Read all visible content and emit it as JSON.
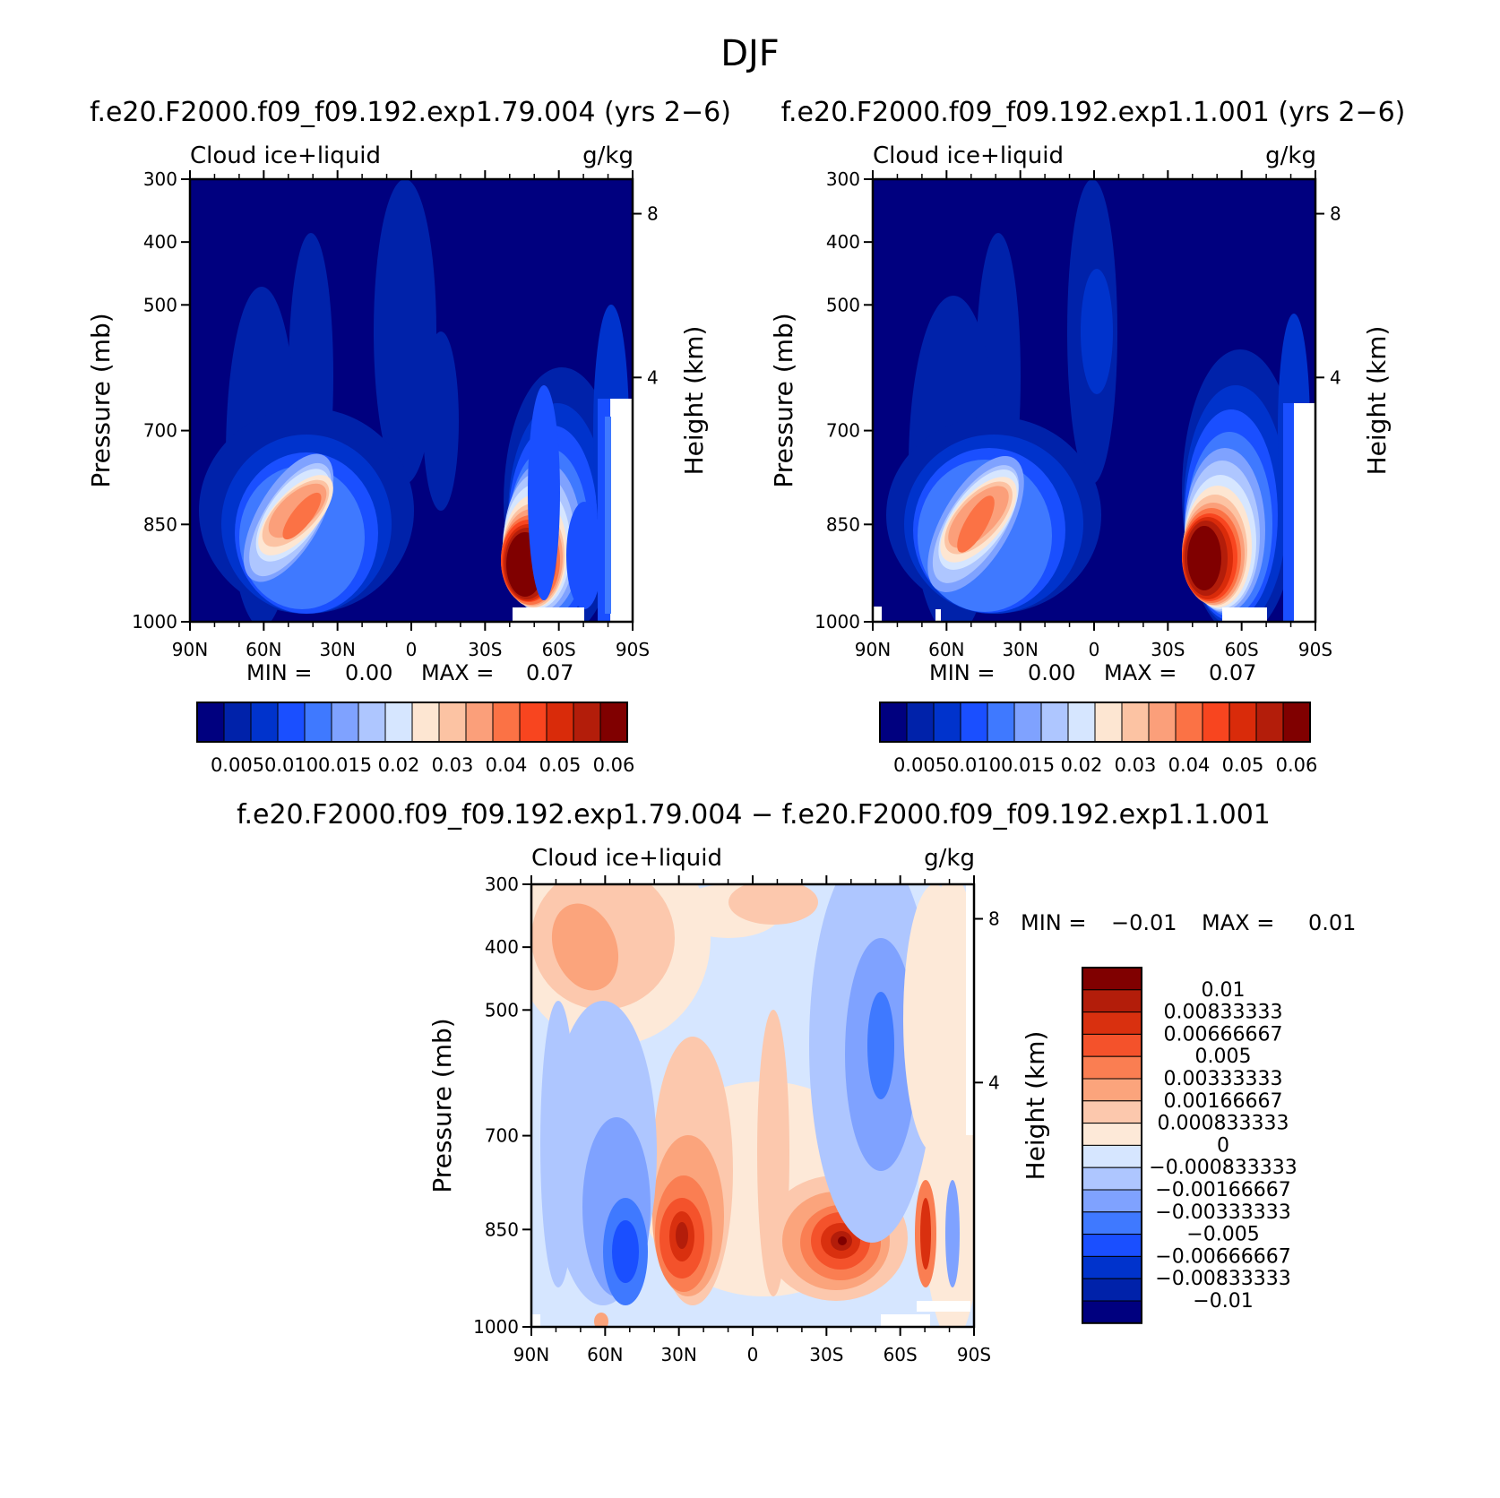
{
  "figure": {
    "title": "DJF",
    "colors": {
      "blues": [
        "#00007f",
        "#0022aa",
        "#0033cc",
        "#1a4fff",
        "#3f79ff",
        "#7fa2ff",
        "#aec6ff",
        "#d6e6ff"
      ],
      "reds": [
        "#fde6d2",
        "#fcc3a3",
        "#fb9f7a",
        "#fb7245",
        "#f8451f",
        "#d92b0a",
        "#b31d0a",
        "#800000"
      ],
      "diff_neg": [
        "#00007f",
        "#0022aa",
        "#0033cc",
        "#1a4fff",
        "#3f79ff",
        "#7fa2ff",
        "#aec6ff",
        "#d6e6ff"
      ],
      "diff_pos": [
        "#fde9d8",
        "#fcc8ad",
        "#fba47c",
        "#fa7e52",
        "#f4522b",
        "#d9300f",
        "#b31d0a",
        "#800000"
      ]
    }
  },
  "panels": [
    {
      "title": "f.e20.F2000.f09_f09.192.exp1.79.004 (yrs 2−6)",
      "left_label": "Cloud  ice+liquid",
      "right_label": "g/kg",
      "y_title": "Pressure (mb)",
      "y2_title": "Height (km)",
      "stats": {
        "min_label": "MIN =",
        "min_value": "0.00",
        "max_label": "MAX =",
        "max_value": "0.07"
      }
    },
    {
      "title": "f.e20.F2000.f09_f09.192.exp1.1.001 (yrs 2−6)",
      "left_label": "Cloud  ice+liquid",
      "right_label": "g/kg",
      "y_title": "Pressure (mb)",
      "y2_title": "Height (km)",
      "stats": {
        "min_label": "MIN =",
        "min_value": "0.00",
        "max_label": "MAX =",
        "max_value": "0.07"
      }
    },
    {
      "title": "f.e20.F2000.f09_f09.192.exp1.79.004 − f.e20.F2000.f09_f09.192.exp1.1.001",
      "left_label": "Cloud  ice+liquid",
      "right_label": "g/kg",
      "y_title": "Pressure (mb)",
      "y2_title": "Height (km)",
      "stats": {
        "min_label": "MIN =",
        "min_value": "−0.01",
        "max_label": "MAX =",
        "max_value": "0.01"
      }
    }
  ],
  "chart_data": [
    {
      "type": "heatmap",
      "title": "f.e20.F2000.f09_f09.192.exp1.79.004 (yrs 2−6)",
      "variable": "Cloud  ice+liquid",
      "units": "g/kg",
      "x_ticks": [
        "90N",
        "60N",
        "30N",
        "0",
        "30S",
        "60S",
        "90S"
      ],
      "y_ticks": [
        "300",
        "400",
        "500",
        "700",
        "850",
        "1000"
      ],
      "y2_ticks": [
        "8",
        "4"
      ],
      "colorbar_labels": [
        "0.005",
        "0.010",
        "0.015",
        "0.02",
        "0.03",
        "0.04",
        "0.05",
        "0.06"
      ],
      "min": 0.0,
      "max": 0.07,
      "features": [
        {
          "lat": 38,
          "p": 840,
          "value": 0.045
        },
        {
          "lat": -54,
          "p": 880,
          "value": 0.065
        }
      ]
    },
    {
      "type": "heatmap",
      "title": "f.e20.F2000.f09_f09.192.exp1.1.001 (yrs 2−6)",
      "variable": "Cloud  ice+liquid",
      "units": "g/kg",
      "x_ticks": [
        "90N",
        "60N",
        "30N",
        "0",
        "30S",
        "60S",
        "90S"
      ],
      "y_ticks": [
        "300",
        "400",
        "500",
        "700",
        "850",
        "1000"
      ],
      "y2_ticks": [
        "8",
        "4"
      ],
      "colorbar_labels": [
        "0.005",
        "0.010",
        "0.015",
        "0.02",
        "0.03",
        "0.04",
        "0.05",
        "0.06"
      ],
      "min": 0.0,
      "max": 0.07,
      "features": [
        {
          "lat": 40,
          "p": 850,
          "value": 0.045
        },
        {
          "lat": -52,
          "p": 880,
          "value": 0.065
        }
      ]
    },
    {
      "type": "heatmap",
      "title": "f.e20.F2000.f09_f09.192.exp1.79.004 − f.e20.F2000.f09_f09.192.exp1.1.001",
      "variable": "Cloud  ice+liquid",
      "units": "g/kg",
      "x_ticks": [
        "90N",
        "60N",
        "30N",
        "0",
        "30S",
        "60S",
        "90S"
      ],
      "y_ticks": [
        "300",
        "400",
        "500",
        "700",
        "850",
        "1000"
      ],
      "y2_ticks": [
        "8",
        "4"
      ],
      "colorbar_labels": [
        "0.01",
        "0.00833333",
        "0.00666667",
        "0.005",
        "0.00333333",
        "0.00166667",
        "0.000833333",
        "0",
        "−0.000833333",
        "−0.00166667",
        "−0.00333333",
        "−0.005",
        "−0.00666667",
        "−0.00833333",
        "−0.01"
      ],
      "min": -0.01,
      "max": 0.01,
      "features": [
        {
          "lat": 30,
          "p": 850,
          "value": 0.009
        },
        {
          "lat": -35,
          "p": 860,
          "value": 0.01
        },
        {
          "lat": 52,
          "p": 880,
          "value": -0.006
        }
      ]
    }
  ]
}
